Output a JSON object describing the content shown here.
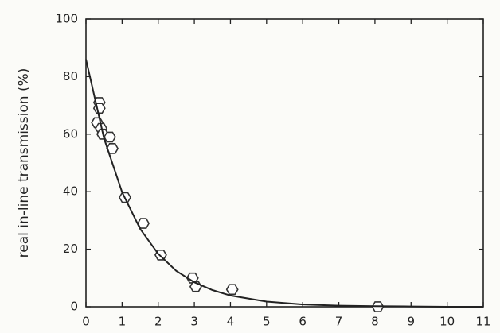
{
  "chart_data": {
    "type": "scatter",
    "y_label": "real in-line transmission (%)",
    "xlim": [
      0,
      11
    ],
    "xticks": [
      0,
      1,
      2,
      3,
      4,
      5,
      6,
      7,
      8,
      9,
      10,
      11
    ],
    "ylim": [
      0,
      100
    ],
    "yticks": [
      0,
      20,
      40,
      60,
      80,
      100
    ],
    "series": [
      {
        "mode": "markers",
        "color": "#333333",
        "x": [
          0.37,
          0.37,
          0.31,
          0.42,
          0.46,
          0.66,
          0.73,
          1.08,
          1.59,
          2.07,
          2.95,
          3.04,
          4.05,
          8.08
        ],
        "values": [
          71,
          69,
          64,
          62,
          60,
          59,
          55,
          38,
          29,
          18,
          10,
          7,
          6,
          0
        ]
      },
      {
        "mode": "line",
        "color": "#222222",
        "x": [
          0,
          0.5,
          1,
          1.5,
          2,
          2.5,
          3,
          3.5,
          4,
          5,
          6,
          7,
          8,
          9,
          10,
          11
        ],
        "values": [
          86,
          58.5,
          39.8,
          27.1,
          18.4,
          12.5,
          8.5,
          5.8,
          3.9,
          1.8,
          0.8,
          0.4,
          0.2,
          0.1,
          0,
          0
        ]
      }
    ]
  }
}
